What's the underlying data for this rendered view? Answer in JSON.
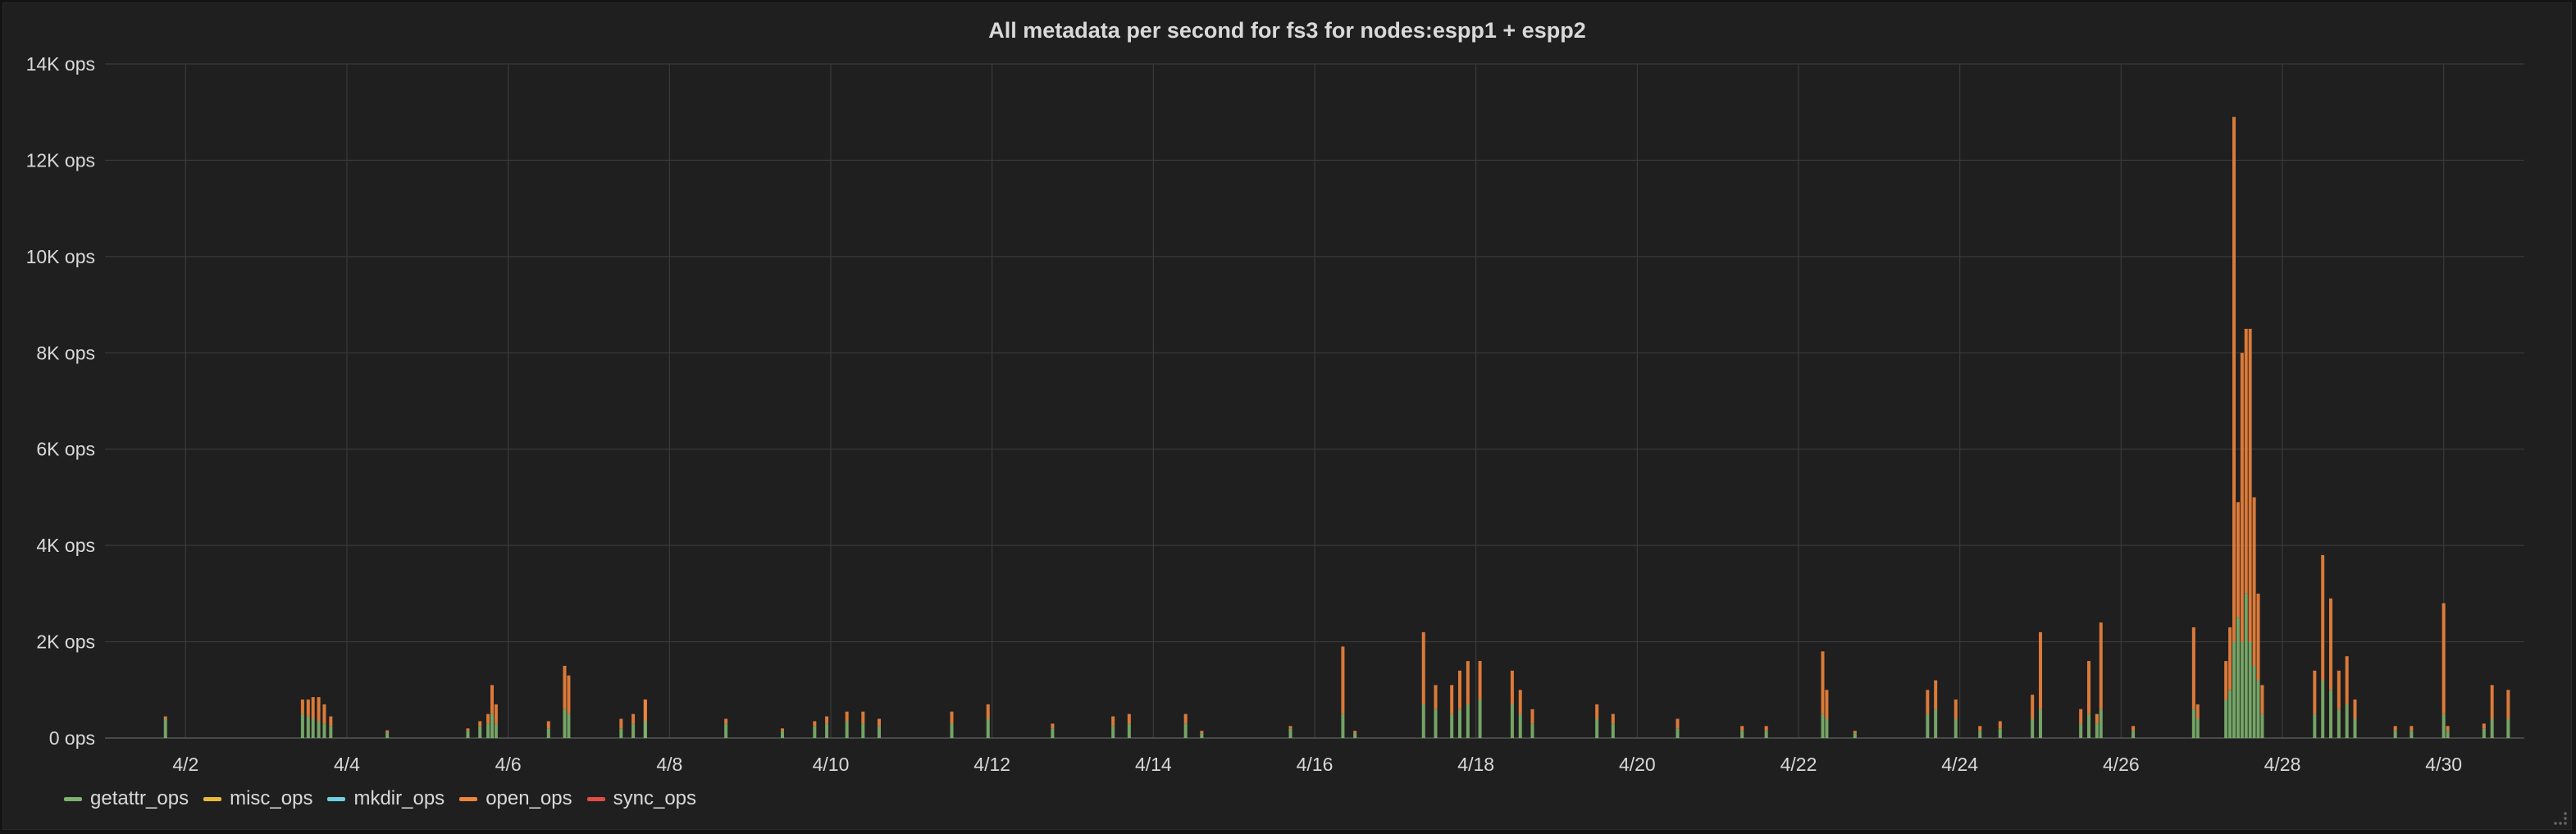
{
  "panel": {
    "title": "All metadata per second for fs3 for nodes:espp1 + espp2"
  },
  "colors": {
    "background": "#1f1f20",
    "grid": "#3a3a3a",
    "text": "#d8d9da"
  },
  "chart_data": {
    "type": "area",
    "title": "All metadata per second for fs3 for nodes:espp1 + espp2",
    "stacked": true,
    "x_unit": "day of April",
    "xlim": [
      1.0,
      31.0
    ],
    "ylim": [
      0,
      14000
    ],
    "y_unit": "ops",
    "xticks": [
      {
        "x": 2,
        "label": "4/2"
      },
      {
        "x": 4,
        "label": "4/4"
      },
      {
        "x": 6,
        "label": "4/6"
      },
      {
        "x": 8,
        "label": "4/8"
      },
      {
        "x": 10,
        "label": "4/10"
      },
      {
        "x": 12,
        "label": "4/12"
      },
      {
        "x": 14,
        "label": "4/14"
      },
      {
        "x": 16,
        "label": "4/16"
      },
      {
        "x": 18,
        "label": "4/18"
      },
      {
        "x": 20,
        "label": "4/20"
      },
      {
        "x": 22,
        "label": "4/22"
      },
      {
        "x": 24,
        "label": "4/24"
      },
      {
        "x": 26,
        "label": "4/26"
      },
      {
        "x": 28,
        "label": "4/28"
      },
      {
        "x": 30,
        "label": "4/30"
      }
    ],
    "yticks": [
      {
        "y": 0,
        "label": "0 ops"
      },
      {
        "y": 2000,
        "label": "2K ops"
      },
      {
        "y": 4000,
        "label": "4K ops"
      },
      {
        "y": 6000,
        "label": "6K ops"
      },
      {
        "y": 8000,
        "label": "8K ops"
      },
      {
        "y": 10000,
        "label": "10K ops"
      },
      {
        "y": 12000,
        "label": "12K ops"
      },
      {
        "y": 14000,
        "label": "14K ops"
      }
    ],
    "grid": true,
    "legend_position": "bottom-left",
    "series": [
      {
        "name": "getattr_ops",
        "color": "#7eb26d"
      },
      {
        "name": "misc_ops",
        "color": "#eab839"
      },
      {
        "name": "mkdir_ops",
        "color": "#6ed0e0"
      },
      {
        "name": "open_ops",
        "color": "#ef843c"
      },
      {
        "name": "sync_ops",
        "color": "#e24d42"
      }
    ],
    "spikes": [
      {
        "x": 1.75,
        "getattr": 400,
        "open": 50
      },
      {
        "x": 3.45,
        "getattr": 500,
        "open": 300
      },
      {
        "x": 3.52,
        "getattr": 450,
        "open": 350
      },
      {
        "x": 3.58,
        "getattr": 400,
        "open": 450
      },
      {
        "x": 3.65,
        "getattr": 350,
        "open": 500
      },
      {
        "x": 3.72,
        "getattr": 300,
        "open": 400
      },
      {
        "x": 3.8,
        "getattr": 250,
        "open": 200
      },
      {
        "x": 4.5,
        "getattr": 120,
        "open": 40
      },
      {
        "x": 5.5,
        "getattr": 150,
        "open": 50
      },
      {
        "x": 5.65,
        "getattr": 250,
        "open": 100
      },
      {
        "x": 5.75,
        "getattr": 300,
        "open": 200
      },
      {
        "x": 5.8,
        "getattr": 500,
        "open": 600
      },
      {
        "x": 5.85,
        "getattr": 300,
        "open": 400
      },
      {
        "x": 6.5,
        "getattr": 200,
        "open": 150
      },
      {
        "x": 6.7,
        "getattr": 600,
        "open": 900
      },
      {
        "x": 6.75,
        "getattr": 500,
        "open": 800
      },
      {
        "x": 7.4,
        "getattr": 200,
        "open": 200
      },
      {
        "x": 7.55,
        "getattr": 300,
        "open": 200
      },
      {
        "x": 7.7,
        "getattr": 400,
        "open": 400
      },
      {
        "x": 7.7,
        "getattr": 350,
        "open": 450
      },
      {
        "x": 8.7,
        "getattr": 300,
        "open": 100
      },
      {
        "x": 9.4,
        "getattr": 150,
        "open": 50
      },
      {
        "x": 9.8,
        "getattr": 250,
        "open": 100
      },
      {
        "x": 9.95,
        "getattr": 300,
        "open": 150
      },
      {
        "x": 10.2,
        "getattr": 350,
        "open": 200
      },
      {
        "x": 10.4,
        "getattr": 300,
        "open": 250
      },
      {
        "x": 10.6,
        "getattr": 250,
        "open": 150
      },
      {
        "x": 11.5,
        "getattr": 300,
        "open": 250
      },
      {
        "x": 11.95,
        "getattr": 400,
        "open": 300
      },
      {
        "x": 12.75,
        "getattr": 200,
        "open": 100
      },
      {
        "x": 13.5,
        "getattr": 250,
        "open": 200
      },
      {
        "x": 13.7,
        "getattr": 300,
        "open": 200
      },
      {
        "x": 14.4,
        "getattr": 300,
        "open": 200
      },
      {
        "x": 14.6,
        "getattr": 100,
        "open": 50
      },
      {
        "x": 15.7,
        "getattr": 200,
        "open": 50
      },
      {
        "x": 16.35,
        "getattr": 500,
        "open": 1400
      },
      {
        "x": 16.5,
        "getattr": 100,
        "open": 50
      },
      {
        "x": 17.35,
        "getattr": 700,
        "open": 1500
      },
      {
        "x": 17.5,
        "getattr": 600,
        "open": 500
      },
      {
        "x": 17.7,
        "getattr": 500,
        "open": 600
      },
      {
        "x": 17.8,
        "getattr": 600,
        "open": 800
      },
      {
        "x": 17.9,
        "getattr": 700,
        "open": 900
      },
      {
        "x": 18.05,
        "getattr": 800,
        "open": 800
      },
      {
        "x": 18.45,
        "getattr": 700,
        "open": 700
      },
      {
        "x": 18.55,
        "getattr": 500,
        "open": 500
      },
      {
        "x": 18.7,
        "getattr": 300,
        "open": 300
      },
      {
        "x": 19.5,
        "getattr": 400,
        "open": 300
      },
      {
        "x": 19.7,
        "getattr": 300,
        "open": 200
      },
      {
        "x": 20.5,
        "getattr": 200,
        "open": 200
      },
      {
        "x": 21.3,
        "getattr": 150,
        "open": 100
      },
      {
        "x": 21.6,
        "getattr": 150,
        "open": 100
      },
      {
        "x": 22.3,
        "getattr": 500,
        "open": 1300
      },
      {
        "x": 22.35,
        "getattr": 400,
        "open": 600
      },
      {
        "x": 22.7,
        "getattr": 100,
        "open": 50
      },
      {
        "x": 23.6,
        "getattr": 500,
        "open": 500
      },
      {
        "x": 23.7,
        "getattr": 600,
        "open": 600
      },
      {
        "x": 23.95,
        "getattr": 400,
        "open": 400
      },
      {
        "x": 24.25,
        "getattr": 150,
        "open": 100
      },
      {
        "x": 24.5,
        "getattr": 200,
        "open": 150
      },
      {
        "x": 24.9,
        "getattr": 400,
        "open": 500
      },
      {
        "x": 25.0,
        "getattr": 600,
        "open": 1600
      },
      {
        "x": 25.5,
        "getattr": 300,
        "open": 300
      },
      {
        "x": 25.6,
        "getattr": 500,
        "open": 1100
      },
      {
        "x": 25.7,
        "getattr": 300,
        "open": 200
      },
      {
        "x": 25.75,
        "getattr": 600,
        "open": 1800
      },
      {
        "x": 26.15,
        "getattr": 150,
        "open": 100
      },
      {
        "x": 26.9,
        "getattr": 600,
        "open": 1700
      },
      {
        "x": 26.95,
        "getattr": 400,
        "open": 300
      },
      {
        "x": 27.3,
        "getattr": 800,
        "open": 800
      },
      {
        "x": 27.35,
        "getattr": 1000,
        "open": 1300
      },
      {
        "x": 27.4,
        "getattr": 2000,
        "open": 10900
      },
      {
        "x": 27.45,
        "getattr": 2500,
        "open": 2400
      },
      {
        "x": 27.5,
        "getattr": 2000,
        "open": 6000
      },
      {
        "x": 27.55,
        "getattr": 3000,
        "open": 5500
      },
      {
        "x": 27.6,
        "getattr": 2000,
        "open": 6500
      },
      {
        "x": 27.65,
        "getattr": 1500,
        "open": 3500
      },
      {
        "x": 27.7,
        "getattr": 1200,
        "open": 1800
      },
      {
        "x": 27.75,
        "getattr": 500,
        "open": 600
      },
      {
        "x": 28.4,
        "getattr": 500,
        "open": 900
      },
      {
        "x": 28.5,
        "getattr": 1200,
        "open": 2600
      },
      {
        "x": 28.6,
        "getattr": 1000,
        "open": 1900
      },
      {
        "x": 28.7,
        "getattr": 600,
        "open": 800
      },
      {
        "x": 28.8,
        "getattr": 700,
        "open": 1000
      },
      {
        "x": 28.9,
        "getattr": 400,
        "open": 400
      },
      {
        "x": 29.4,
        "getattr": 150,
        "open": 100
      },
      {
        "x": 29.6,
        "getattr": 150,
        "open": 100
      },
      {
        "x": 30.0,
        "getattr": 500,
        "open": 2300
      },
      {
        "x": 30.05,
        "getattr": 150,
        "open": 100
      },
      {
        "x": 30.5,
        "getattr": 200,
        "open": 100
      },
      {
        "x": 30.6,
        "getattr": 400,
        "open": 700
      },
      {
        "x": 30.8,
        "getattr": 400,
        "open": 600
      }
    ]
  }
}
